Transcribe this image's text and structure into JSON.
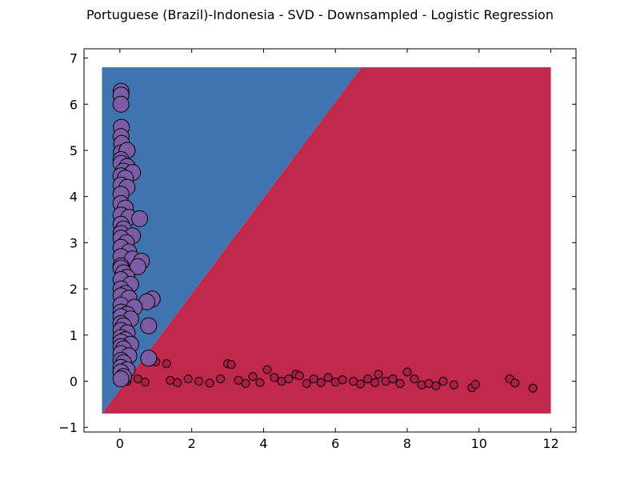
{
  "chart_data": {
    "type": "scatter",
    "title": "Portuguese (Brazil)-Indonesia - SVD - Downsampled - Logistic Regression",
    "xlabel": "",
    "ylabel": "",
    "xlim": [
      -1,
      12.7
    ],
    "ylim": [
      -1.1,
      7.2
    ],
    "x_ticks": [
      0,
      2,
      4,
      6,
      8,
      10,
      12
    ],
    "y_ticks": [
      -1,
      0,
      1,
      2,
      3,
      4,
      5,
      6,
      7
    ],
    "x_tick_labels": [
      "0",
      "2",
      "4",
      "6",
      "8",
      "10",
      "12"
    ],
    "y_tick_labels": [
      "−1",
      "0",
      "1",
      "2",
      "3",
      "4",
      "5",
      "6",
      "7"
    ],
    "decision_regions": {
      "extent_x": [
        -0.5,
        12.0
      ],
      "extent_y": [
        -0.7,
        6.8
      ],
      "boundary": [
        [
          -0.5,
          -0.7
        ],
        [
          6.72,
          6.8
        ]
      ],
      "upper_left_color": "#3f74b1",
      "lower_right_color": "#c0284c"
    },
    "grid": false,
    "legend": "none",
    "series": [
      {
        "color": "#7b5ca5",
        "marker_size": "large",
        "points": [
          [
            0.03,
            6.28
          ],
          [
            0.03,
            6.2
          ],
          [
            0.03,
            6.0
          ],
          [
            0.04,
            5.5
          ],
          [
            0.03,
            5.3
          ],
          [
            0.05,
            5.15
          ],
          [
            0.04,
            4.95
          ],
          [
            0.2,
            5.0
          ],
          [
            0.03,
            4.8
          ],
          [
            0.03,
            4.72
          ],
          [
            0.2,
            4.65
          ],
          [
            0.1,
            4.55
          ],
          [
            0.35,
            4.52
          ],
          [
            0.03,
            4.45
          ],
          [
            0.15,
            4.4
          ],
          [
            0.03,
            4.25
          ],
          [
            0.2,
            4.2
          ],
          [
            0.03,
            4.05
          ],
          [
            0.03,
            3.85
          ],
          [
            0.15,
            3.75
          ],
          [
            0.03,
            3.6
          ],
          [
            0.25,
            3.55
          ],
          [
            0.55,
            3.52
          ],
          [
            0.03,
            3.4
          ],
          [
            0.1,
            3.3
          ],
          [
            0.03,
            3.2
          ],
          [
            0.35,
            3.15
          ],
          [
            0.03,
            3.1
          ],
          [
            0.18,
            3.0
          ],
          [
            0.03,
            2.9
          ],
          [
            0.25,
            2.8
          ],
          [
            0.03,
            2.7
          ],
          [
            0.35,
            2.65
          ],
          [
            0.6,
            2.6
          ],
          [
            0.03,
            2.5
          ],
          [
            0.5,
            2.48
          ],
          [
            0.03,
            2.45
          ],
          [
            0.1,
            2.35
          ],
          [
            0.2,
            2.25
          ],
          [
            0.03,
            2.2
          ],
          [
            0.3,
            2.1
          ],
          [
            0.03,
            2.0
          ],
          [
            0.15,
            1.9
          ],
          [
            0.03,
            1.85
          ],
          [
            0.25,
            1.8
          ],
          [
            0.9,
            1.78
          ],
          [
            0.75,
            1.72
          ],
          [
            0.03,
            1.65
          ],
          [
            0.4,
            1.6
          ],
          [
            0.03,
            1.5
          ],
          [
            0.2,
            1.45
          ],
          [
            0.03,
            1.4
          ],
          [
            0.3,
            1.35
          ],
          [
            0.03,
            1.25
          ],
          [
            0.1,
            1.2
          ],
          [
            0.8,
            1.2
          ],
          [
            0.03,
            1.1
          ],
          [
            0.2,
            1.05
          ],
          [
            0.03,
            0.95
          ],
          [
            0.15,
            0.9
          ],
          [
            0.03,
            0.85
          ],
          [
            0.3,
            0.8
          ],
          [
            0.03,
            0.75
          ],
          [
            0.1,
            0.7
          ],
          [
            0.03,
            0.6
          ],
          [
            0.25,
            0.55
          ],
          [
            0.8,
            0.5
          ],
          [
            0.03,
            0.45
          ],
          [
            0.1,
            0.4
          ],
          [
            0.03,
            0.3
          ],
          [
            0.2,
            0.25
          ],
          [
            0.03,
            0.2
          ],
          [
            0.1,
            0.1
          ],
          [
            0.03,
            0.05
          ]
        ]
      },
      {
        "color": "#b01c48",
        "marker_size": "small",
        "points": [
          [
            0.2,
            0.0
          ],
          [
            0.5,
            0.05
          ],
          [
            0.7,
            -0.02
          ],
          [
            1.0,
            0.42
          ],
          [
            1.3,
            0.38
          ],
          [
            1.4,
            0.02
          ],
          [
            1.6,
            -0.03
          ],
          [
            1.9,
            0.05
          ],
          [
            2.2,
            0.0
          ],
          [
            2.5,
            -0.04
          ],
          [
            2.8,
            0.05
          ],
          [
            3.0,
            0.38
          ],
          [
            3.1,
            0.36
          ],
          [
            3.3,
            0.02
          ],
          [
            3.5,
            -0.05
          ],
          [
            3.7,
            0.1
          ],
          [
            3.9,
            -0.03
          ],
          [
            4.1,
            0.25
          ],
          [
            4.3,
            0.08
          ],
          [
            4.5,
            0.0
          ],
          [
            4.7,
            0.05
          ],
          [
            4.9,
            0.15
          ],
          [
            5.0,
            0.12
          ],
          [
            5.2,
            -0.05
          ],
          [
            5.4,
            0.05
          ],
          [
            5.6,
            -0.03
          ],
          [
            5.8,
            0.08
          ],
          [
            6.0,
            -0.02
          ],
          [
            6.2,
            0.03
          ],
          [
            6.5,
            0.0
          ],
          [
            6.7,
            -0.06
          ],
          [
            6.9,
            0.05
          ],
          [
            7.1,
            -0.03
          ],
          [
            7.2,
            0.15
          ],
          [
            7.4,
            0.0
          ],
          [
            7.6,
            0.05
          ],
          [
            7.8,
            -0.05
          ],
          [
            8.0,
            0.2
          ],
          [
            8.2,
            0.05
          ],
          [
            8.4,
            -0.08
          ],
          [
            8.6,
            -0.05
          ],
          [
            8.8,
            -0.1
          ],
          [
            9.0,
            0.0
          ],
          [
            9.3,
            -0.08
          ],
          [
            9.8,
            -0.14
          ],
          [
            9.9,
            -0.07
          ],
          [
            10.85,
            0.05
          ],
          [
            11.0,
            -0.04
          ],
          [
            11.5,
            -0.15
          ]
        ]
      }
    ]
  }
}
